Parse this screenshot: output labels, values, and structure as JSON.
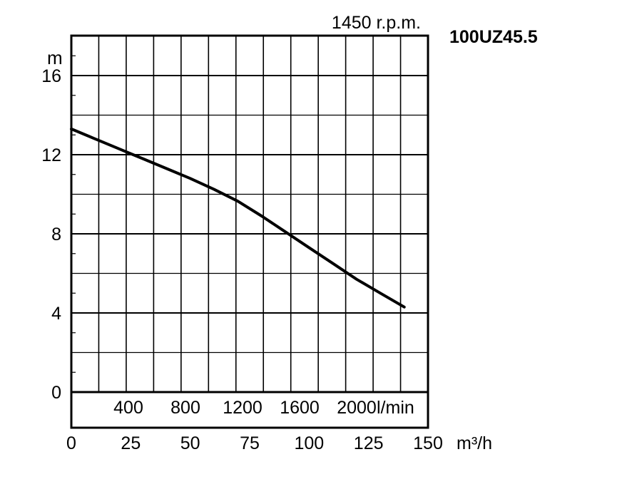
{
  "chart_data": {
    "type": "line",
    "model": "100UZ45.5",
    "speed": "1450 r.p.m.",
    "ylabel": "m",
    "y_ticks": [
      "0",
      "4",
      "8",
      "12",
      "16"
    ],
    "ylim": [
      0,
      18
    ],
    "x_ticks_m3h": [
      "0",
      "25",
      "50",
      "75",
      "100",
      "125",
      "150"
    ],
    "x_unit_m3h": "m³/h",
    "x_ticks_lmin": [
      "400",
      "800",
      "1200",
      "1600",
      "2000"
    ],
    "x_unit_lmin": "l/min",
    "xlim": [
      0,
      150
    ],
    "grid": true,
    "series": [
      {
        "x": [
          0,
          10,
          20,
          25,
          30,
          40,
          50,
          60,
          70,
          80,
          90,
          100,
          110,
          120,
          130,
          140
        ],
        "y": [
          13.3,
          12.8,
          12.3,
          12.05,
          11.8,
          11.3,
          10.8,
          10.25,
          9.65,
          8.9,
          8.1,
          7.3,
          6.5,
          5.7,
          5.0,
          4.3
        ]
      }
    ]
  }
}
